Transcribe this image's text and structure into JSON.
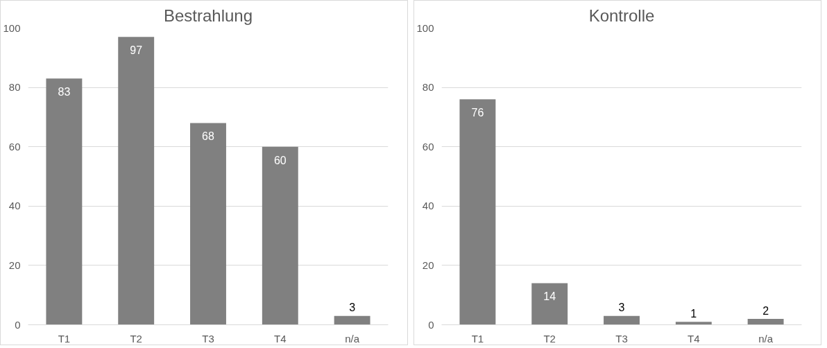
{
  "chart_data": [
    {
      "type": "bar",
      "title": "Bestrahlung",
      "categories": [
        "T1",
        "T2",
        "T3",
        "T4",
        "n/a"
      ],
      "values": [
        83,
        97,
        68,
        60,
        3
      ],
      "color": "#808080",
      "ylim": [
        0,
        100
      ],
      "yticks": [
        0,
        20,
        40,
        60,
        80,
        100
      ],
      "grid": "y",
      "data_labels": true
    },
    {
      "type": "bar",
      "title": "Kontrolle",
      "categories": [
        "T1",
        "T2",
        "T3",
        "T4",
        "n/a"
      ],
      "values": [
        76,
        14,
        3,
        1,
        2
      ],
      "color": "#808080",
      "ylim": [
        0,
        100
      ],
      "yticks": [
        0,
        20,
        40,
        60,
        80,
        100
      ],
      "grid": "y",
      "data_labels": true
    }
  ]
}
